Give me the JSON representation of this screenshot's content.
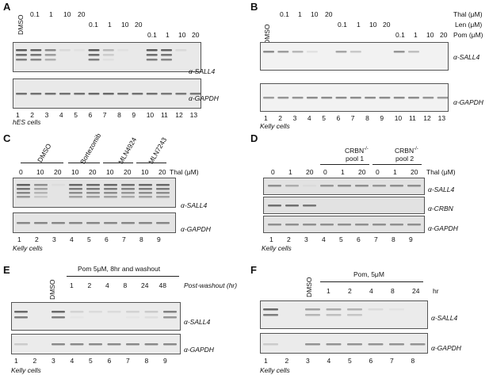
{
  "panel_a": {
    "letter": "A",
    "dmso": "DMSO",
    "thal_conc": [
      "0.1",
      "1",
      "10",
      "20"
    ],
    "len_conc": [
      "0.1",
      "1",
      "10",
      "20"
    ],
    "pom_conc": [
      "0.1",
      "1",
      "10",
      "20"
    ],
    "thal_label": "Thal (μM)",
    "len_label": "Len (μM)",
    "pom_label": "Pom (μM)",
    "antibody_1": "α-SALL4",
    "antibody_2": "α-GAPDH",
    "lanes": [
      "1",
      "2",
      "3",
      "4",
      "5",
      "6",
      "7",
      "8",
      "9",
      "10",
      "11",
      "12",
      "13"
    ],
    "cells": "hES cells"
  },
  "panel_b": {
    "letter": "B",
    "dmso": "DMSO",
    "thal_conc": [
      "0.1",
      "1",
      "10",
      "20"
    ],
    "len_conc": [
      "0.1",
      "1",
      "10",
      "20"
    ],
    "pom_conc": [
      "0.1",
      "1",
      "10",
      "20"
    ],
    "thal_label": "Thal (μM)",
    "len_label": "Len (μM)",
    "pom_label": "Pom (μM)",
    "antibody_1": "α-SALL4",
    "antibody_2": "α-GAPDH",
    "lanes": [
      "1",
      "2",
      "3",
      "4",
      "5",
      "6",
      "7",
      "8",
      "9",
      "10",
      "11",
      "12",
      "13"
    ],
    "cells": "Kelly cells"
  },
  "panel_c": {
    "letter": "C",
    "groups": [
      "DMSO",
      "Bortezomib",
      "MLN4924",
      "MLN7243"
    ],
    "conc": [
      "0",
      "10",
      "20",
      "10",
      "20",
      "10",
      "20",
      "10",
      "20"
    ],
    "thal_label": "Thal (μM)",
    "antibody_1": "α-SALL4",
    "antibody_2": "α-GAPDH",
    "lanes": [
      "1",
      "2",
      "3",
      "4",
      "5",
      "6",
      "7",
      "8",
      "9"
    ],
    "cells": "Kelly cells"
  },
  "panel_d": {
    "letter": "D",
    "pool1": "CRBN",
    "pool1_sup": "-/-",
    "pool1_b": "pool 1",
    "pool2": "CRBN",
    "pool2_sup": "-/-",
    "pool2_b": "pool 2",
    "conc": [
      "0",
      "1",
      "20",
      "0",
      "1",
      "20",
      "0",
      "1",
      "20"
    ],
    "thal_label": "Thal (μM)",
    "antibody_1": "α-SALL4",
    "antibody_2": "α-CRBN",
    "antibody_3": "α-GAPDH",
    "lanes": [
      "1",
      "2",
      "3",
      "4",
      "5",
      "6",
      "7",
      "8",
      "9"
    ],
    "cells": "Kelly cells"
  },
  "panel_e": {
    "letter": "E",
    "dmso": "DMSO",
    "treatment": "Pom 5μM, 8hr and washout",
    "times": [
      "1",
      "2",
      "4",
      "8",
      "24",
      "48"
    ],
    "time_label": "Post-washout (hr)",
    "antibody_1": "α-SALL4",
    "antibody_2": "α-GAPDH",
    "lanes": [
      "1",
      "2",
      "3",
      "4",
      "5",
      "6",
      "7",
      "8",
      "9"
    ],
    "cells": "Kelly cells"
  },
  "panel_f": {
    "letter": "F",
    "dmso": "DMSO",
    "treatment": "Pom, 5μM",
    "times": [
      "1",
      "2",
      "4",
      "8",
      "24"
    ],
    "time_label": "hr",
    "antibody_1": "α-SALL4",
    "antibody_2": "α-GAPDH",
    "lanes": [
      "1",
      "2",
      "3",
      "4",
      "5",
      "6",
      "7",
      "8"
    ],
    "cells": "Kelly cells"
  },
  "colors": {
    "band": "#4a4a4a",
    "blot_bg": "#e9e9e9",
    "frame": "#555555"
  }
}
